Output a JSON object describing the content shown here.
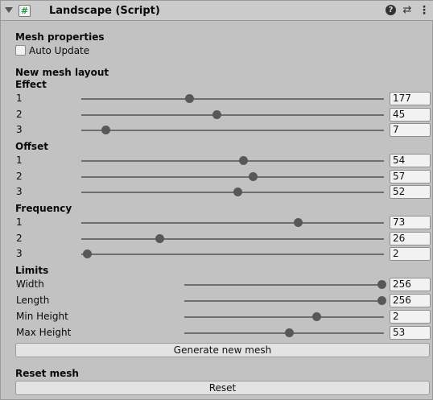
{
  "header": {
    "title": "Landscape (Script)",
    "script_glyph": "#",
    "help_glyph": "?",
    "preset_glyph": "⇄",
    "menu_glyph": "⋮"
  },
  "mesh_properties": {
    "heading": "Mesh properties",
    "auto_update_label": "Auto Update",
    "auto_update_checked": false
  },
  "layout": {
    "heading": "New mesh layout",
    "groups": [
      {
        "heading": "Effect",
        "rows": [
          {
            "label": "1",
            "value": "177",
            "fraction": 0.36
          },
          {
            "label": "2",
            "value": "45",
            "fraction": 0.45
          },
          {
            "label": "3",
            "value": "7",
            "fraction": 0.08
          }
        ]
      },
      {
        "heading": "Offset",
        "rows": [
          {
            "label": "1",
            "value": "54",
            "fraction": 0.54
          },
          {
            "label": "2",
            "value": "57",
            "fraction": 0.57
          },
          {
            "label": "3",
            "value": "52",
            "fraction": 0.52
          }
        ]
      },
      {
        "heading": "Frequency",
        "rows": [
          {
            "label": "1",
            "value": "73",
            "fraction": 0.72
          },
          {
            "label": "2",
            "value": "26",
            "fraction": 0.26
          },
          {
            "label": "3",
            "value": "2",
            "fraction": 0.02
          }
        ]
      },
      {
        "heading": "Limits",
        "rows": [
          {
            "label": "Width",
            "value": "256",
            "fraction": 1.0
          },
          {
            "label": "Length",
            "value": "256",
            "fraction": 1.0
          },
          {
            "label": "Min Height",
            "value": "2",
            "fraction": 0.67
          },
          {
            "label": "Max Height",
            "value": "53",
            "fraction": 0.53
          }
        ]
      }
    ],
    "generate_button": "Generate new mesh"
  },
  "reset": {
    "heading": "Reset mesh",
    "button": "Reset"
  }
}
